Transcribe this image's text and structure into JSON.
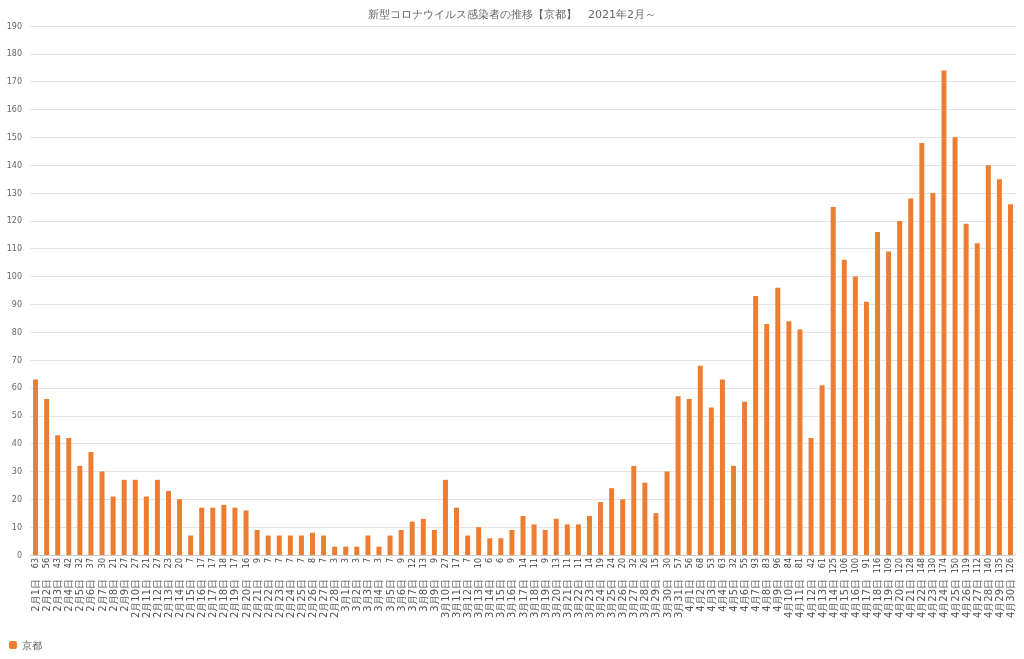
{
  "chart_data": {
    "type": "bar",
    "title": "新型コロナウイルス感染者の推移【京都】　2021年2月～",
    "categories": [
      "2月1日",
      "2月2日",
      "2月3日",
      "2月4日",
      "2月5日",
      "2月6日",
      "2月7日",
      "2月8日",
      "2月9日",
      "2月10日",
      "2月11日",
      "2月12日",
      "2月13日",
      "2月14日",
      "2月15日",
      "2月16日",
      "2月17日",
      "2月18日",
      "2月19日",
      "2月20日",
      "2月21日",
      "2月22日",
      "2月23日",
      "2月24日",
      "2月25日",
      "2月26日",
      "2月27日",
      "2月28日",
      "3月1日",
      "3月2日",
      "3月3日",
      "3月4日",
      "3月5日",
      "3月6日",
      "3月7日",
      "3月8日",
      "3月9日",
      "3月10日",
      "3月11日",
      "3月12日",
      "3月13日",
      "3月14日",
      "3月15日",
      "3月16日",
      "3月17日",
      "3月18日",
      "3月19日",
      "3月20日",
      "3月21日",
      "3月22日",
      "3月23日",
      "3月24日",
      "3月25日",
      "3月26日",
      "3月27日",
      "3月28日",
      "3月29日",
      "3月30日",
      "3月31日",
      "4月1日",
      "4月2日",
      "4月3日",
      "4月4日",
      "4月5日",
      "4月6日",
      "4月7日",
      "4月8日",
      "4月9日",
      "4月10日",
      "4月11日",
      "4月12日",
      "4月13日",
      "4月14日",
      "4月15日",
      "4月16日",
      "4月17日",
      "4月18日",
      "4月19日",
      "4月20日",
      "4月21日",
      "4月22日",
      "4月23日",
      "4月24日",
      "4月25日",
      "4月26日",
      "4月27日",
      "4月28日",
      "4月29日",
      "4月30日"
    ],
    "series": [
      {
        "name": "京都",
        "color": "#ed7d31",
        "values": [
          63,
          56,
          43,
          42,
          32,
          37,
          30,
          21,
          27,
          27,
          21,
          27,
          23,
          20,
          7,
          17,
          17,
          18,
          17,
          16,
          9,
          7,
          7,
          7,
          7,
          8,
          7,
          3,
          3,
          3,
          7,
          3,
          7,
          9,
          12,
          13,
          9,
          27,
          17,
          7,
          10,
          6,
          6,
          9,
          14,
          11,
          9,
          13,
          11,
          11,
          14,
          19,
          24,
          20,
          32,
          26,
          15,
          30,
          57,
          56,
          68,
          53,
          63,
          32,
          55,
          93,
          83,
          96,
          84,
          81,
          42,
          61,
          125,
          106,
          100,
          91,
          116,
          109,
          120,
          128,
          148,
          130,
          174,
          150,
          119,
          112,
          140,
          135,
          126
        ]
      }
    ],
    "ylim": [
      0,
      190
    ],
    "yticks": [
      0,
      10,
      20,
      30,
      40,
      50,
      60,
      70,
      80,
      90,
      100,
      110,
      120,
      130,
      140,
      150,
      160,
      170,
      180,
      190
    ],
    "grid": "y",
    "legend": "bottom left",
    "data_labels": true
  }
}
